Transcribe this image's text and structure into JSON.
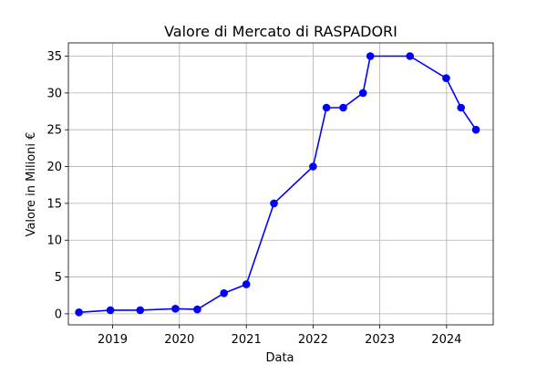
{
  "chart_data": {
    "type": "line",
    "title": "Valore di Mercato di RASPADORI",
    "xlabel": "Data",
    "ylabel": "Valore in Milioni €",
    "x_ticks": [
      "2019",
      "2020",
      "2021",
      "2022",
      "2023",
      "2024"
    ],
    "y_ticks": [
      "0",
      "5",
      "10",
      "15",
      "20",
      "25",
      "30",
      "35"
    ],
    "xlim": [
      "2018-05-04",
      "2024-09-12"
    ],
    "ylim": [
      -1.5,
      36.8
    ],
    "grid": true,
    "colors": {
      "series": "#0000ff",
      "grid": "#b0b0b0"
    },
    "series": [
      {
        "x": [
          "2018-07-01",
          "2018-12-20",
          "2019-06-01",
          "2019-12-10",
          "2020-04-08",
          "2020-09-01",
          "2021-01-01",
          "2021-06-01",
          "2022-01-01",
          "2022-03-15",
          "2022-06-15",
          "2022-10-01",
          "2022-11-10",
          "2023-06-15",
          "2023-12-30",
          "2024-03-20",
          "2024-06-10"
        ],
        "y": [
          0.2,
          0.5,
          0.5,
          0.7,
          0.6,
          2.8,
          4,
          15,
          20,
          28,
          28,
          30,
          35,
          35,
          32,
          28,
          25
        ]
      }
    ]
  }
}
